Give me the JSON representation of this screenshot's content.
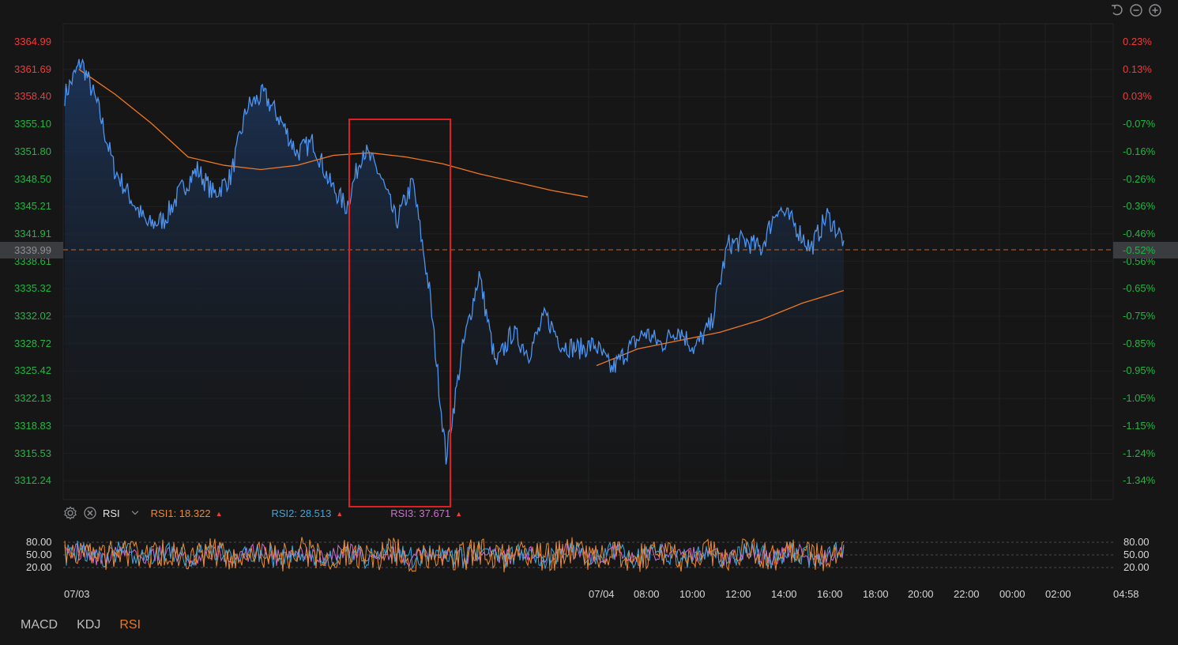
{
  "price_axis_left": [
    "3364.99",
    "3361.69",
    "3358.40",
    "3355.10",
    "3351.80",
    "3348.50",
    "3345.21",
    "3341.91",
    "3338.61",
    "3335.32",
    "3332.02",
    "3328.72",
    "3325.42",
    "3322.13",
    "3318.83",
    "3315.53",
    "3312.24"
  ],
  "pct_axis_right": [
    "0.23%",
    "0.13%",
    "0.03%",
    "-0.07%",
    "-0.16%",
    "-0.26%",
    "-0.36%",
    "-0.46%",
    "-0.56%",
    "-0.65%",
    "-0.75%",
    "-0.85%",
    "-0.95%",
    "-1.05%",
    "-1.15%",
    "-1.24%",
    "-1.34%"
  ],
  "current_price": "3339.99",
  "current_pct": "-0.52%",
  "colors": {
    "up": "#f23b3b",
    "down": "#21b544",
    "price_line": "#4d94f0",
    "avg_line": "#f0781e",
    "highlight_box": "#e02020",
    "rsi1": "#f08a24",
    "rsi2": "#39a8e0",
    "rsi3": "#d26cd6"
  },
  "rsi": {
    "name": "RSI",
    "rsi1_label": "RSI1: 18.322",
    "rsi2_label": "RSI2: 28.513",
    "rsi3_label": "RSI3: 37.671",
    "levels": [
      "80.00",
      "50.00",
      "20.00"
    ],
    "arrow": "▲"
  },
  "time_axis": [
    "07/03",
    "07/04",
    "08:00",
    "10:00",
    "12:00",
    "14:00",
    "16:00",
    "18:00",
    "20:00",
    "22:00",
    "00:00",
    "02:00",
    "04:58"
  ],
  "tabs": [
    {
      "label": "MACD",
      "active": false
    },
    {
      "label": "KDJ",
      "active": false
    },
    {
      "label": "RSI",
      "active": true
    }
  ],
  "icons": [
    "reset-icon",
    "zoom-out-icon",
    "zoom-in-icon",
    "gear-icon",
    "close-icon",
    "chevron-down-icon"
  ],
  "chart_data": {
    "type": "line",
    "title": "",
    "series": [
      {
        "values": [
          3358.4,
          3362.5,
          3357.0,
          3349.5,
          3346.0,
          3342.8,
          3343.5,
          3347.0,
          3349.5,
          3346.5,
          3348.6,
          3357.0,
          3358.5,
          3355.5,
          3351.5,
          3352.8,
          3347.8,
          3345.0,
          3352.0,
          3349.0,
          3343.2,
          3348.0,
          3335.0,
          3315.0,
          3328.0,
          3337.0,
          3326.0,
          3330.0,
          3327.5,
          3332.0,
          3328.5,
          3328.0,
          3328.5,
          3325.5,
          3328.0,
          3330.0,
          3328.5,
          3330.5,
          3328.0,
          3331.0,
          3340.5,
          3341.0,
          3340.0,
          3345.0,
          3343.0,
          3340.0,
          3344.0,
          3341.0
        ]
      },
      {
        "values": [
          3361.5,
          3358.5,
          3355.0,
          3351.0,
          3350.0,
          3349.5,
          3350.0,
          3351.2,
          3351.5,
          3351.0,
          3350.2,
          3349.0,
          3348.0,
          3347.0,
          3346.2
        ]
      },
      {
        "values": [
          3326.0,
          3328.0,
          3329.0,
          3330.0,
          3331.5,
          3333.5,
          3335.0
        ]
      }
    ],
    "ylim": [
      3310.8,
      3366.5
    ],
    "xlabel": "",
    "ylabel": ""
  }
}
